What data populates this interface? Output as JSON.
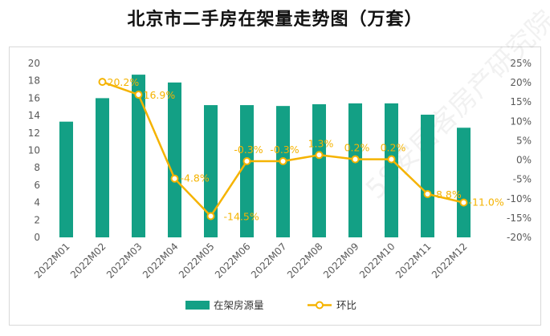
{
  "chart_data": {
    "type": "bar+line",
    "title": "北京市二手房在架量走势图（万套）",
    "categories": [
      "2022M01",
      "2022M02",
      "2022M03",
      "2022M04",
      "2022M05",
      "2022M06",
      "2022M07",
      "2022M08",
      "2022M09",
      "2022M10",
      "2022M11",
      "2022M12"
    ],
    "series": [
      {
        "name": "在架房源量",
        "type": "bar",
        "axis": "left",
        "values": [
          13.3,
          16.0,
          18.7,
          17.8,
          15.2,
          15.2,
          15.1,
          15.3,
          15.4,
          15.4,
          14.1,
          12.6
        ]
      },
      {
        "name": "环比",
        "type": "line",
        "axis": "right",
        "values": [
          null,
          20.2,
          16.9,
          -4.8,
          -14.5,
          -0.3,
          -0.3,
          1.3,
          0.2,
          0.2,
          -8.8,
          -11.0
        ],
        "labels": [
          "",
          "20.2%",
          "16.9%",
          "-4.8%",
          "-14.5%",
          "-0.3%",
          "-0.3%",
          "1.3%",
          "0.2%",
          "0.2%",
          "-8.8%",
          "-11.0%"
        ]
      }
    ],
    "y_left": {
      "min": 0,
      "max": 20,
      "step": 2,
      "ticks": [
        "0",
        "2",
        "4",
        "6",
        "8",
        "10",
        "12",
        "14",
        "16",
        "18",
        "20"
      ]
    },
    "y_right": {
      "min": -20,
      "max": 25,
      "step": 5,
      "ticks": [
        "-20%",
        "-15%",
        "-10%",
        "-5%",
        "0%",
        "5%",
        "10%",
        "15%",
        "20%",
        "25%"
      ]
    },
    "grid": false,
    "legend": "bottom-center",
    "colors": {
      "bar": "#13a085",
      "line": "#f5b300",
      "marker_fill": "#ffffff"
    }
  },
  "watermark": "58安居客房产研究院"
}
